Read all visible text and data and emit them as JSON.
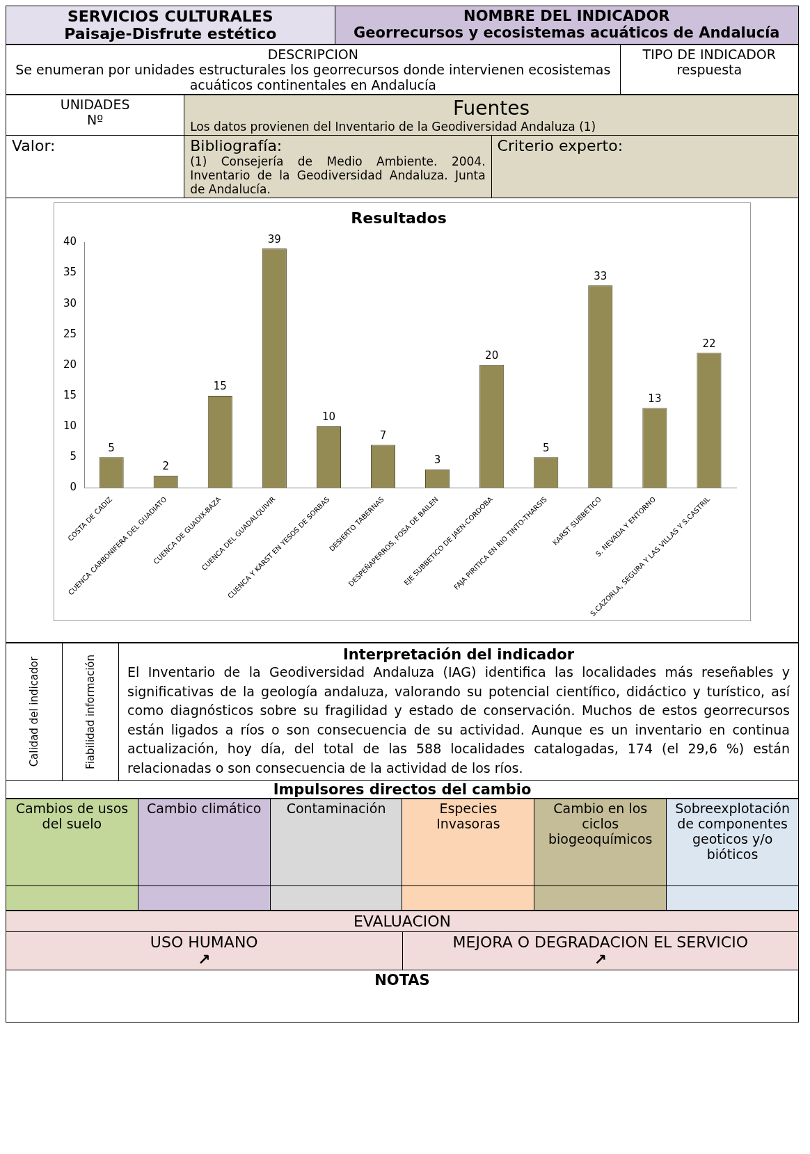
{
  "chart_data": {
    "type": "bar",
    "title": "Resultados",
    "categories": [
      "COSTA DE CADIZ",
      "CUENCA CARBONIFERA DEL GUADIATO",
      "CUENCA DE GUADIX-BAZA",
      "CUENCA DEL GUADALQUIVIR",
      "CUENCA Y KARST EN YESOS DE SORBAS",
      "DESIERTO TABERNAS",
      "DESPEÑAPERROS, FOSA DE BAILEN",
      "EJE SUBBETICO DE JAEN-CORDOBA",
      "FAJA PIRITICA EN RIO TINTO-THARSIS",
      "KARST SUBBETICO",
      "S. NEVADA Y ENTORNO",
      "S.CAZORLA, SEGURA Y LAS VILLAS Y S.CASTRIL"
    ],
    "values": [
      5,
      2,
      15,
      39,
      10,
      7,
      3,
      20,
      5,
      33,
      13,
      22
    ],
    "color": "#948a54",
    "ylim": [
      0,
      40
    ],
    "yticks": [
      0,
      5,
      10,
      15,
      20,
      25,
      30,
      35,
      40
    ],
    "data_labels": true,
    "grid": false,
    "legend": false,
    "annotations": [
      "SERVICIOS CULTURALES",
      "Paisaje-Disfrute estético",
      "NOMBRE DEL INDICADOR",
      "Georrecursos y ecosistemas acuáticos de Andalucía",
      "DESCRIPCION",
      "Se enumeran por unidades estructurales los georrecursos donde intervienen ecosistemas acuáticos continentales en Andalucía",
      "TIPO DE INDICADOR",
      "respuesta",
      "UNIDADES",
      "Nº",
      "Fuentes",
      "Los datos provienen del Inventario de la Geodiversidad Andaluza (1)",
      "Valor:",
      "Bibliografía:",
      "(1) Consejería de Medio Ambiente. 2004. Inventario de la Geodiversidad Andaluza. Junta de Andalucía.",
      "Criterio experto:",
      "Calidad del indicador",
      "Fiabilidad información",
      "Interpretación del indicador",
      "El Inventario de la Geodiversidad Andaluza (IAG) identifica las localidades más reseñables y significativas de la geología andaluza, valorando su potencial científico, didáctico y turístico, así como diagnósticos sobre su fragilidad y estado de conservación. Muchos de estos georrecursos están ligados a ríos o son consecuencia de su actividad. Aunque es un inventario en continua actualización, hoy día, del total de las 588 localidades catalogadas, 174 (el 29,6 %) están relacionadas o son consecuencia de la actividad de los ríos.",
      "Impulsores directos del cambio",
      "Cambios de usos del suelo",
      "Cambio climático",
      "Contaminación",
      "Especies Invasoras",
      "Cambio en los ciclos biogeoquímicos",
      "Sobreexplotación de componentes geoticos y/o bióticos",
      "EVALUACION",
      "USO HUMANO",
      "↗",
      "MEJORA O DEGRADACION EL SERVICIO",
      "↗",
      "NOTAS"
    ]
  }
}
